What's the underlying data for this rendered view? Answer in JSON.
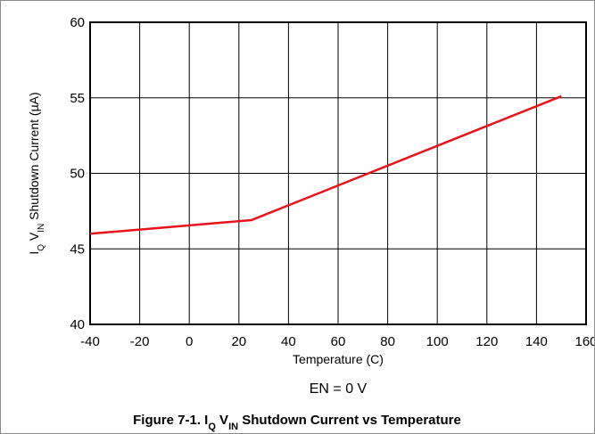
{
  "chart_data": {
    "type": "line",
    "xlabel": "Temperature (C)",
    "ylabel": {
      "parts": [
        {
          "text": "I",
          "sub": false
        },
        {
          "text": "Q",
          "sub": true
        },
        {
          "text": " V",
          "sub": false
        },
        {
          "text": "IN",
          "sub": true
        },
        {
          "text": " Shutdown Current (µA)",
          "sub": false
        }
      ]
    },
    "xlim": [
      -40,
      160
    ],
    "ylim": [
      40,
      60
    ],
    "xticks": [
      -40,
      -20,
      0,
      20,
      40,
      60,
      80,
      100,
      120,
      140,
      160
    ],
    "yticks": [
      40,
      45,
      50,
      55,
      60
    ],
    "grid": true,
    "series": [
      {
        "color": "#e8141c",
        "x": [
          -40,
          25,
          150
        ],
        "y": [
          46.0,
          46.9,
          55.1
        ]
      }
    ],
    "annotation": "EN = 0 V"
  },
  "caption": {
    "parts": [
      {
        "text": "Figure 7-1. I",
        "sub": false
      },
      {
        "text": "Q",
        "sub": true
      },
      {
        "text": " V",
        "sub": false
      },
      {
        "text": "IN",
        "sub": true
      },
      {
        "text": " Shutdown Current vs Temperature",
        "sub": false
      }
    ]
  }
}
